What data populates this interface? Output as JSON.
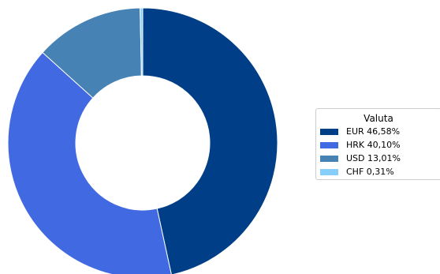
{
  "chart_data": {
    "type": "pie",
    "subtype": "donut",
    "legend_title": "Valuta",
    "legend_position": "right",
    "slices": [
      {
        "label": "EUR 46,58%",
        "category": "EUR",
        "value": 46.58,
        "color": "#003f87"
      },
      {
        "label": "HRK 40,10%",
        "category": "HRK",
        "value": 40.1,
        "color": "#4169e1"
      },
      {
        "label": "USD 13,01%",
        "category": "USD",
        "value": 13.01,
        "color": "#4682b4"
      },
      {
        "label": "CHF 0,31%",
        "category": "CHF",
        "value": 0.31,
        "color": "#87cefa"
      }
    ]
  }
}
